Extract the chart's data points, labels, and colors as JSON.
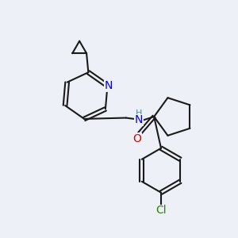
{
  "background_color": "#edf1f7",
  "bond_color": "#1a1a1a",
  "N_color": "#0000ee",
  "O_color": "#dd0000",
  "Cl_color": "#228800",
  "H_color": "#4488aa",
  "lw": 1.5,
  "figsize": [
    3.0,
    3.0
  ],
  "dpi": 100,
  "xlim": [
    0,
    10
  ],
  "ylim": [
    0,
    10
  ]
}
